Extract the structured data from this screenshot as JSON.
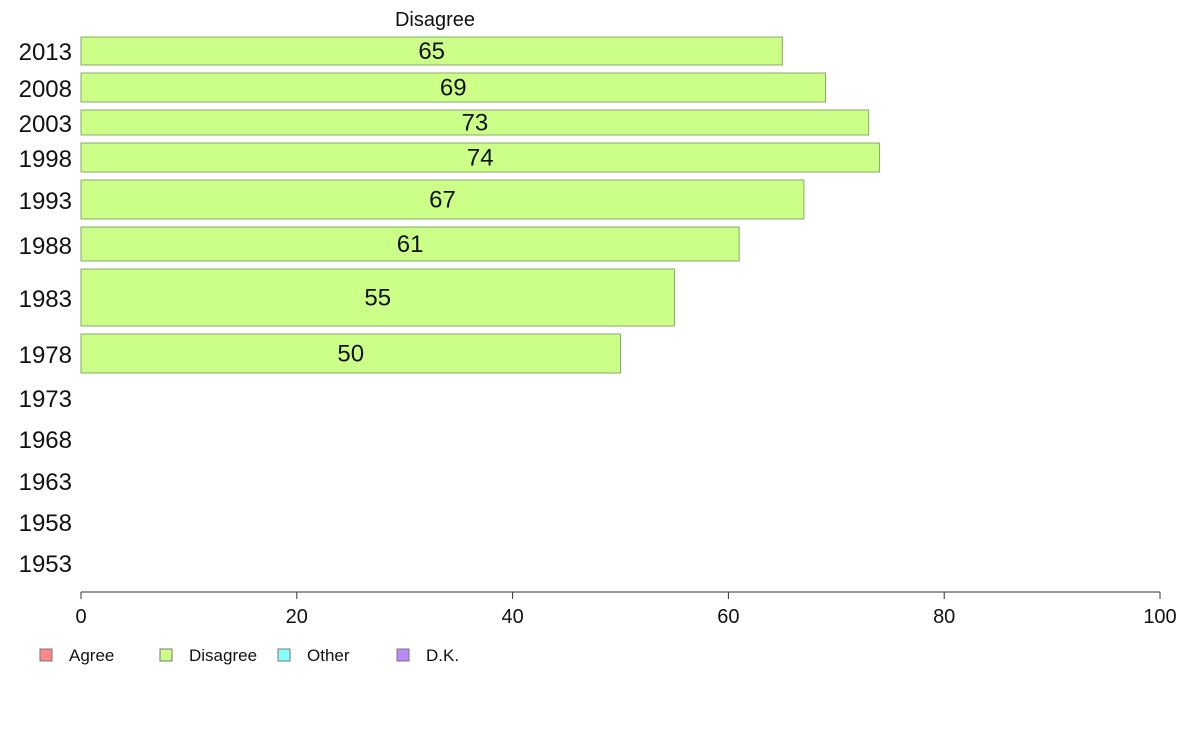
{
  "chart_data": {
    "type": "bar",
    "orientation": "horizontal",
    "title": "Disagree",
    "categories": [
      "2013",
      "2008",
      "2003",
      "1998",
      "1993",
      "1988",
      "1983",
      "1978",
      "1973",
      "1968",
      "1963",
      "1958",
      "1953"
    ],
    "series": [
      {
        "name": "Disagree",
        "values": [
          65,
          69,
          73,
          74,
          67,
          61,
          55,
          50,
          null,
          null,
          null,
          null,
          null
        ],
        "labels": [
          "65",
          "69",
          "73",
          "74",
          "67",
          "61",
          "55",
          "50",
          "",
          "",
          "",
          "",
          ""
        ],
        "color": "#ccff88"
      }
    ],
    "x_ticks": [
      "0",
      "20",
      "40",
      "60",
      "80",
      "100"
    ],
    "xlim": [
      0,
      100
    ],
    "grid": false,
    "legend": {
      "position": "bottom-left",
      "items": [
        {
          "label": "Agree",
          "color": "#ff8888"
        },
        {
          "label": "Disagree",
          "color": "#ccff88"
        },
        {
          "label": "Other",
          "color": "#88ffff"
        },
        {
          "label": "D.K.",
          "color": "#bb88ff"
        }
      ]
    }
  }
}
